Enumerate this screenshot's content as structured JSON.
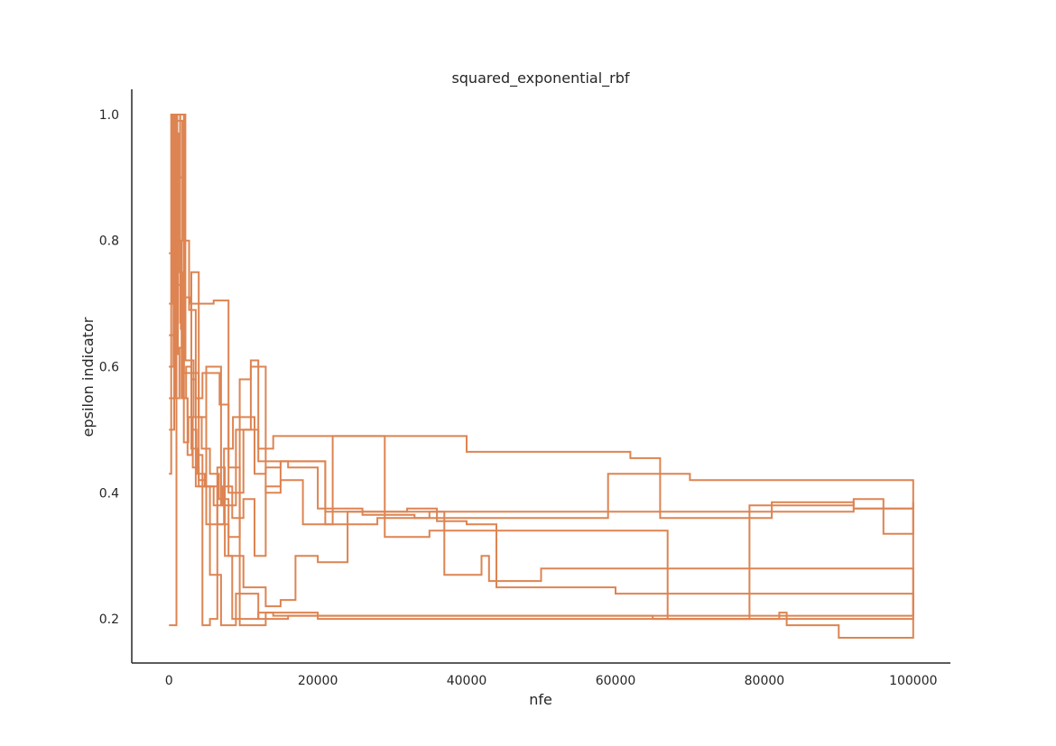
{
  "chart_data": {
    "type": "line",
    "title": "squared_exponential_rbf",
    "xlabel": "nfe",
    "ylabel": "epsilon indicator",
    "xlim": [
      -5000,
      105000
    ],
    "ylim": [
      0.13,
      1.04
    ],
    "xticks": [
      0,
      20000,
      40000,
      60000,
      80000,
      100000
    ],
    "xtick_labels": [
      "0",
      "20000",
      "40000",
      "60000",
      "80000",
      "100000"
    ],
    "yticks": [
      0.2,
      0.4,
      0.6,
      0.8,
      1.0
    ],
    "ytick_labels": [
      "0.2",
      "0.4",
      "0.6",
      "0.8",
      "1.0"
    ],
    "grid": false,
    "line_color": "#dd8452",
    "series": [
      {
        "x": [
          0,
          300,
          500,
          900,
          1400,
          2000,
          2600,
          3200,
          4000,
          5500,
          7000,
          9000,
          12000,
          16000,
          25000,
          35000,
          50000,
          70000,
          85000,
          100000
        ],
        "y": [
          0.43,
          1.0,
          0.7,
          0.55,
          0.63,
          0.48,
          0.52,
          0.44,
          0.41,
          0.27,
          0.19,
          0.24,
          0.2,
          0.205,
          0.205,
          0.205,
          0.205,
          0.205,
          0.205,
          0.205
        ]
      },
      {
        "x": [
          0,
          400,
          800,
          1200,
          1700,
          2300,
          3000,
          3600,
          5000,
          7000,
          9000,
          11000,
          12000,
          16000,
          20000,
          26000,
          36000,
          40000,
          44000,
          60000,
          80000,
          100000
        ],
        "y": [
          0.78,
          1.0,
          0.62,
          0.8,
          0.55,
          0.6,
          0.58,
          0.41,
          0.6,
          0.38,
          0.5,
          0.61,
          0.45,
          0.44,
          0.375,
          0.37,
          0.355,
          0.35,
          0.25,
          0.24,
          0.24,
          0.205
        ]
      },
      {
        "x": [
          0,
          600,
          1100,
          1600,
          2200,
          2800,
          3500,
          4500,
          6000,
          8000,
          10000,
          12000,
          14000,
          18000,
          22000,
          30000,
          40000,
          52000,
          62000,
          66000,
          70000,
          94000,
          100000
        ],
        "y": [
          0.6,
          1.0,
          0.73,
          0.66,
          0.71,
          0.7,
          0.7,
          0.7,
          0.705,
          0.4,
          0.5,
          0.47,
          0.49,
          0.49,
          0.49,
          0.49,
          0.465,
          0.465,
          0.455,
          0.43,
          0.42,
          0.42,
          0.205
        ]
      },
      {
        "x": [
          0,
          500,
          1000,
          1500,
          2000,
          2500,
          3000,
          4000,
          5000,
          6500,
          8000,
          10000,
          13000,
          15000,
          17000,
          20000,
          24000,
          32000,
          36000,
          37000,
          42000,
          43000,
          50000,
          60000,
          80000,
          100000
        ],
        "y": [
          0.19,
          0.19,
          1.0,
          0.9,
          0.55,
          0.52,
          0.59,
          0.52,
          0.41,
          0.35,
          0.3,
          0.25,
          0.22,
          0.23,
          0.3,
          0.29,
          0.37,
          0.375,
          0.37,
          0.27,
          0.3,
          0.26,
          0.28,
          0.28,
          0.28,
          0.205
        ]
      },
      {
        "x": [
          0,
          700,
          1300,
          1900,
          2500,
          3100,
          3700,
          4500,
          5500,
          6500,
          7500,
          8500,
          10000,
          12000,
          14000,
          17000,
          22000,
          27000,
          33000,
          45000,
          55000,
          65000,
          75000,
          83000,
          90000,
          100000
        ],
        "y": [
          0.5,
          0.97,
          0.75,
          0.55,
          0.46,
          0.5,
          0.46,
          0.19,
          0.2,
          0.44,
          0.3,
          0.2,
          0.2,
          0.21,
          0.205,
          0.205,
          0.205,
          0.205,
          0.205,
          0.205,
          0.205,
          0.2,
          0.2,
          0.19,
          0.17,
          0.205
        ]
      },
      {
        "x": [
          0,
          800,
          1500,
          2200,
          3000,
          3800,
          4800,
          6000,
          7200,
          8500,
          10000,
          11500,
          13000,
          15000,
          21000,
          28000,
          35000,
          45000,
          55000,
          65000,
          75000,
          85000,
          92000,
          100000
        ],
        "y": [
          0.6,
          1.0,
          0.67,
          0.61,
          0.47,
          0.43,
          0.41,
          0.38,
          0.41,
          0.36,
          0.39,
          0.3,
          0.41,
          0.45,
          0.35,
          0.36,
          0.37,
          0.37,
          0.37,
          0.37,
          0.37,
          0.37,
          0.375,
          0.375
        ]
      },
      {
        "x": [
          0,
          900,
          1800,
          2700,
          3600,
          4500,
          5600,
          6800,
          8000,
          9500,
          11000,
          13000,
          15000,
          18000,
          20000,
          22000,
          30000,
          40000,
          50000,
          60000,
          70000,
          77000,
          78000,
          83000,
          92000,
          96000,
          100000
        ],
        "y": [
          0.55,
          0.99,
          0.8,
          0.69,
          0.55,
          0.59,
          0.59,
          0.54,
          0.44,
          0.19,
          0.19,
          0.21,
          0.21,
          0.21,
          0.2,
          0.2,
          0.2,
          0.2,
          0.2,
          0.2,
          0.2,
          0.2,
          0.38,
          0.38,
          0.39,
          0.335,
          0.385
        ]
      },
      {
        "x": [
          0,
          1000,
          2000,
          3000,
          4000,
          5000,
          6200,
          7400,
          8600,
          10000,
          11500,
          13000,
          15000,
          17000,
          19000,
          21000,
          26000,
          33000,
          45000,
          58000,
          59000,
          62000,
          66000,
          79000,
          81000,
          86000,
          92000,
          100000
        ],
        "y": [
          0.65,
          1.0,
          0.59,
          0.75,
          0.42,
          0.35,
          0.35,
          0.47,
          0.52,
          0.52,
          0.43,
          0.44,
          0.45,
          0.45,
          0.45,
          0.37,
          0.365,
          0.36,
          0.36,
          0.36,
          0.43,
          0.43,
          0.36,
          0.36,
          0.385,
          0.385,
          0.375,
          0.385
        ]
      },
      {
        "x": [
          0,
          1100,
          2200,
          3300,
          4400,
          5500,
          6700,
          8000,
          9500,
          11000,
          13000,
          15000,
          18000,
          22000,
          28000,
          29000,
          35000,
          45000,
          55000,
          65000,
          67000,
          73000,
          82000,
          83000,
          94000,
          100000
        ],
        "y": [
          0.7,
          1.0,
          0.61,
          0.52,
          0.47,
          0.43,
          0.39,
          0.33,
          0.58,
          0.6,
          0.4,
          0.42,
          0.35,
          0.49,
          0.49,
          0.33,
          0.34,
          0.34,
          0.34,
          0.34,
          0.2,
          0.2,
          0.21,
          0.2,
          0.2,
          0.205
        ]
      }
    ]
  }
}
